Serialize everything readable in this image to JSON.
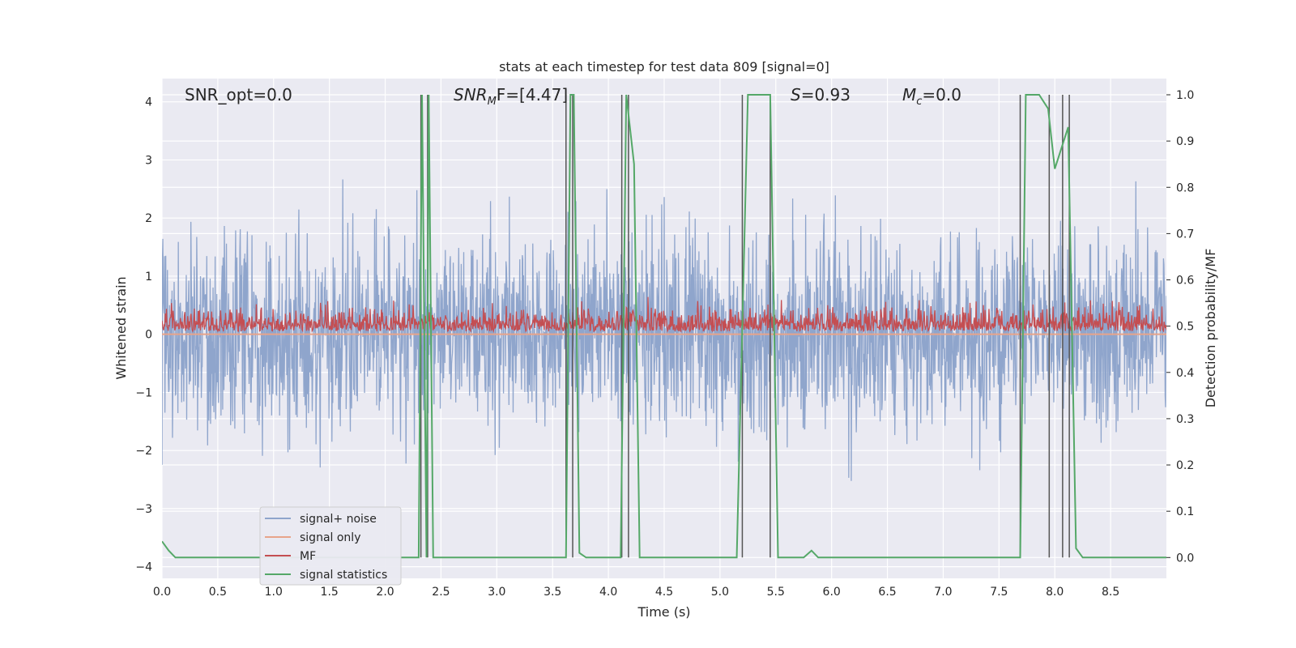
{
  "chart_data": {
    "type": "line",
    "title": "stats at each timestep for test data 809 [signal=0]",
    "xlabel": "Time (s)",
    "ylabel_left": "Whitened strain",
    "ylabel_right": "Detection probability/MF",
    "xlim": [
      0.0,
      9.0
    ],
    "ylim_left": [
      -4.2,
      4.4
    ],
    "ylim_right": [
      -0.045,
      1.035
    ],
    "x_ticks": [
      "0.0",
      "0.5",
      "1.0",
      "1.5",
      "2.0",
      "2.5",
      "3.0",
      "3.5",
      "4.0",
      "4.5",
      "5.0",
      "5.5",
      "6.0",
      "6.5",
      "7.0",
      "7.5",
      "8.0",
      "8.5"
    ],
    "y_ticks_left": [
      "−4",
      "−3",
      "−2",
      "−1",
      "0",
      "1",
      "2",
      "3",
      "4"
    ],
    "y_ticks_right": [
      "0.0",
      "0.1",
      "0.2",
      "0.3",
      "0.4",
      "0.5",
      "0.6",
      "0.7",
      "0.8",
      "0.9",
      "1.0"
    ],
    "grid": true,
    "legend_position": "lower-left",
    "annotations": {
      "snr_opt": "SNR_opt=0.0",
      "snr_mf_main": "SNR",
      "snr_mf_sub": "M",
      "snr_mf_rest": "F=[4.47]",
      "s_main": "S",
      "s_rest": "=0.93",
      "mc_main": "M",
      "mc_sub": "c",
      "mc_rest": "=0.0"
    },
    "series": [
      {
        "name": "signal+ noise",
        "color": "#8fa5cc",
        "axis": "left",
        "envelope": {
          "positive_typical": 1.4,
          "negative_typical": -1.4,
          "max": 4.0,
          "min": -3.7
        }
      },
      {
        "name": "signal only",
        "color": "#e8a48a",
        "axis": "left",
        "constant": 0.0
      },
      {
        "name": "MF",
        "color": "#c44e52",
        "axis": "left",
        "band": {
          "low": 0.0,
          "high_typical": 0.4,
          "max": 0.9
        }
      },
      {
        "name": "signal statistics",
        "color": "#55a868",
        "axis": "right",
        "points": [
          [
            0.0,
            0.035
          ],
          [
            0.06,
            0.015
          ],
          [
            0.12,
            0.0
          ],
          [
            2.3,
            0.0
          ],
          [
            2.33,
            1.0
          ],
          [
            2.37,
            0.0
          ],
          [
            2.39,
            1.0
          ],
          [
            2.43,
            0.0
          ],
          [
            3.62,
            0.0
          ],
          [
            3.66,
            1.0
          ],
          [
            3.69,
            1.0
          ],
          [
            3.74,
            0.01
          ],
          [
            3.8,
            0.0
          ],
          [
            4.11,
            0.0
          ],
          [
            4.16,
            1.0
          ],
          [
            4.23,
            0.85
          ],
          [
            4.28,
            0.0
          ],
          [
            5.15,
            0.0
          ],
          [
            5.25,
            1.0
          ],
          [
            5.45,
            1.0
          ],
          [
            5.52,
            0.0
          ],
          [
            5.75,
            0.0
          ],
          [
            5.82,
            0.015
          ],
          [
            5.88,
            0.0
          ],
          [
            7.69,
            0.0
          ],
          [
            7.74,
            1.0
          ],
          [
            7.86,
            1.0
          ],
          [
            7.94,
            0.97
          ],
          [
            8.0,
            0.84
          ],
          [
            8.12,
            0.93
          ],
          [
            8.19,
            0.02
          ],
          [
            8.25,
            0.0
          ],
          [
            9.0,
            0.0
          ]
        ]
      }
    ],
    "vertical_markers_s": [
      2.32,
      2.38,
      3.62,
      3.68,
      4.12,
      4.18,
      5.2,
      5.45,
      7.69,
      7.95,
      8.07,
      8.13
    ]
  }
}
